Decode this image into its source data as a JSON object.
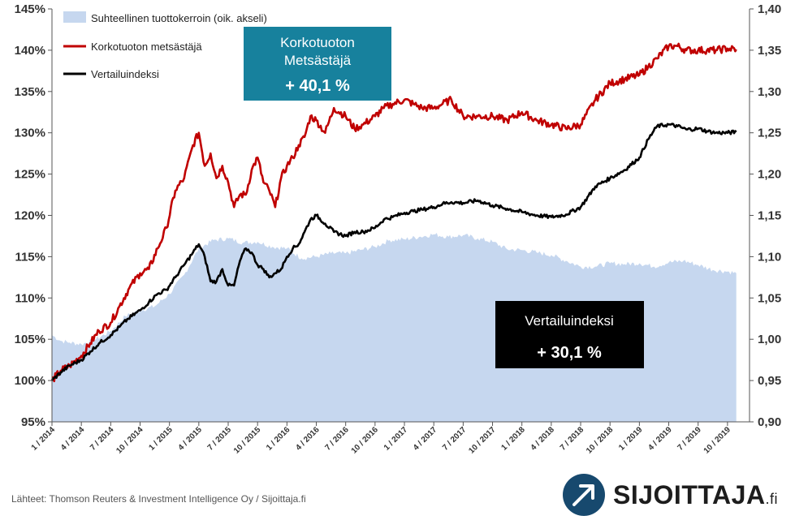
{
  "chart_data": {
    "type": "line",
    "left_axis": {
      "ticks": [
        "95%",
        "100%",
        "105%",
        "110%",
        "115%",
        "120%",
        "125%",
        "130%",
        "135%",
        "140%",
        "145%"
      ],
      "range": [
        95,
        145
      ]
    },
    "right_axis": {
      "ticks": [
        "0,90",
        "0,95",
        "1,00",
        "1,05",
        "1,10",
        "1,15",
        "1,20",
        "1,25",
        "1,30",
        "1,35",
        "1,40"
      ],
      "range": [
        0.9,
        1.4
      ]
    },
    "x_ticks": [
      "1 / 2014",
      "4 / 2014",
      "7 / 2014",
      "10 / 2014",
      "1 / 2015",
      "4 / 2015",
      "7 / 2015",
      "10 / 2015",
      "1 / 2016",
      "4 / 2016",
      "7 / 2016",
      "10 / 2016",
      "1 / 2017",
      "4 / 2017",
      "7 / 2017",
      "10 / 2017",
      "1 / 2018",
      "4 / 2018",
      "7 / 2018",
      "10 / 2018",
      "1 / 2019",
      "4 / 2019",
      "7 / 2019",
      "10 / 2019"
    ],
    "x_range": [
      "2014-01",
      "2019-12"
    ],
    "grid": false,
    "legend_placement": "top-left",
    "series": [
      {
        "name": "Suhteellinen tuottokerroin (oik. akseli)",
        "type": "area",
        "axis": "right",
        "color": "#c6d7ef",
        "x": [
          0,
          0.3,
          0.6,
          1,
          1.5,
          2,
          2.5,
          3,
          3.5,
          4,
          4.5,
          5,
          5.5,
          6,
          6.5,
          7,
          7.5,
          8,
          8.5,
          9,
          9.5,
          10,
          10.5,
          11,
          11.5,
          12,
          12.5,
          13,
          13.5,
          14,
          14.5,
          15,
          15.5,
          16,
          16.5,
          17,
          17.5,
          18,
          18.5,
          19,
          19.5,
          20,
          20.5,
          21,
          21.5,
          22,
          22.5,
          23,
          23.3
        ],
        "values": [
          1.005,
          0.998,
          0.996,
          0.994,
          1.0,
          1.01,
          1.028,
          1.035,
          1.04,
          1.055,
          1.078,
          1.11,
          1.12,
          1.122,
          1.117,
          1.118,
          1.112,
          1.11,
          1.098,
          1.1,
          1.104,
          1.104,
          1.108,
          1.112,
          1.12,
          1.121,
          1.124,
          1.127,
          1.124,
          1.126,
          1.122,
          1.118,
          1.109,
          1.108,
          1.105,
          1.102,
          1.095,
          1.088,
          1.088,
          1.092,
          1.091,
          1.092,
          1.088,
          1.093,
          1.095,
          1.09,
          1.084,
          1.082,
          1.08
        ],
        "unit_note": "month offsets from 1/2014 divided by 3 (quarters)"
      },
      {
        "name": "Korkotuoton metsästäjä",
        "type": "line",
        "axis": "left",
        "color": "#c00000",
        "x": [
          0,
          0.3,
          0.6,
          1,
          1.3,
          1.6,
          2,
          2.3,
          2.6,
          3,
          3.3,
          3.6,
          3.9,
          4.2,
          4.5,
          4.8,
          5.0,
          5.2,
          5.4,
          5.6,
          5.8,
          6.0,
          6.2,
          6.4,
          6.6,
          6.8,
          7.0,
          7.2,
          7.4,
          7.6,
          7.8,
          8.0,
          8.2,
          8.4,
          8.6,
          8.8,
          9.0,
          9.3,
          9.6,
          10.0,
          10.3,
          10.6,
          11.0,
          11.3,
          11.6,
          12.0,
          12.3,
          12.6,
          13.0,
          13.3,
          13.6,
          14.0,
          14.5,
          15.0,
          15.5,
          16.0,
          16.5,
          17.0,
          17.5,
          18.0,
          18.5,
          19.0,
          19.5,
          20.0,
          20.3,
          20.6,
          21.0,
          21.3,
          21.6,
          22.0,
          22.3,
          22.6,
          23.0,
          23.3
        ],
        "values": [
          100,
          101.2,
          101.8,
          103,
          104.5,
          106,
          107,
          109,
          111,
          113,
          113.5,
          116,
          118.5,
          123,
          124.5,
          128.5,
          130,
          126,
          127.5,
          124.5,
          126,
          124,
          121,
          122.5,
          122.5,
          125.5,
          127,
          124,
          123,
          121,
          124.5,
          126,
          127,
          128.5,
          129.5,
          132,
          131.5,
          130,
          133,
          132,
          130.5,
          131,
          132,
          133,
          133.5,
          134,
          133.5,
          133,
          133,
          133.5,
          134,
          132,
          132,
          132,
          131.5,
          132.5,
          131.5,
          131,
          130.5,
          131,
          134,
          136,
          136.5,
          137,
          138,
          139,
          140.5,
          140.5,
          140,
          140,
          140,
          140,
          140.2,
          140.1
        ]
      },
      {
        "name": "Vertailuindeksi",
        "type": "line",
        "axis": "left",
        "color": "#000000",
        "x": [
          0,
          0.3,
          0.6,
          1,
          1.3,
          1.6,
          2,
          2.3,
          2.6,
          3,
          3.3,
          3.6,
          3.9,
          4.2,
          4.5,
          4.8,
          5.0,
          5.2,
          5.4,
          5.6,
          5.8,
          6.0,
          6.2,
          6.4,
          6.6,
          6.8,
          7.0,
          7.2,
          7.4,
          7.6,
          7.8,
          8.0,
          8.2,
          8.4,
          8.6,
          8.8,
          9.0,
          9.3,
          9.6,
          10.0,
          10.3,
          10.6,
          11.0,
          11.3,
          11.6,
          12.0,
          12.3,
          12.6,
          13.0,
          13.3,
          13.6,
          14.0,
          14.5,
          15.0,
          15.5,
          16.0,
          16.5,
          17.0,
          17.5,
          18.0,
          18.5,
          19.0,
          19.5,
          20.0,
          20.3,
          20.6,
          21.0,
          21.3,
          21.6,
          22.0,
          22.3,
          22.6,
          23.0,
          23.3
        ],
        "values": [
          100,
          101.0,
          101.8,
          102.5,
          103.5,
          104.5,
          105.5,
          106.5,
          107.5,
          108.5,
          109.5,
          110.5,
          111,
          112.5,
          114,
          115.5,
          116.5,
          115,
          112,
          112,
          113.5,
          111.5,
          111.5,
          114.5,
          116,
          115.5,
          114,
          113.5,
          112.5,
          113,
          113.5,
          115,
          116,
          116.5,
          118,
          119.5,
          120,
          119,
          118,
          117.5,
          118,
          118,
          118.5,
          119.5,
          119.8,
          120.3,
          120.5,
          120.7,
          121,
          121.4,
          121.6,
          121.5,
          121.8,
          121.2,
          120.8,
          120.4,
          120,
          119.8,
          120.1,
          121,
          123.5,
          124.5,
          125.5,
          127,
          129.2,
          130.8,
          131,
          130.8,
          130.4,
          130.5,
          130.2,
          130,
          130,
          130.1
        ]
      }
    ]
  },
  "legend": {
    "items": [
      "Suhteellinen tuottokerroin (oik. akseli)",
      "Korkotuoton metsästäjä",
      "Vertailuindeksi"
    ]
  },
  "callout_korko": {
    "line1": "Korkotuoton",
    "line2": "Metsästäjä",
    "value": "+ 40,1 %",
    "color": "#17819d"
  },
  "callout_vertailu": {
    "line1": "Vertailuindeksi",
    "value": "+ 30,1 %",
    "color": "#000000"
  },
  "source": "Lähteet: Thomson Reuters & Investment Intelligence Oy / Sijoittaja.fi",
  "logo": {
    "text": "SIJOITTAJA",
    "suffix": ".fi",
    "icon": "arrow-up-right-icon",
    "color": "#17496e"
  }
}
